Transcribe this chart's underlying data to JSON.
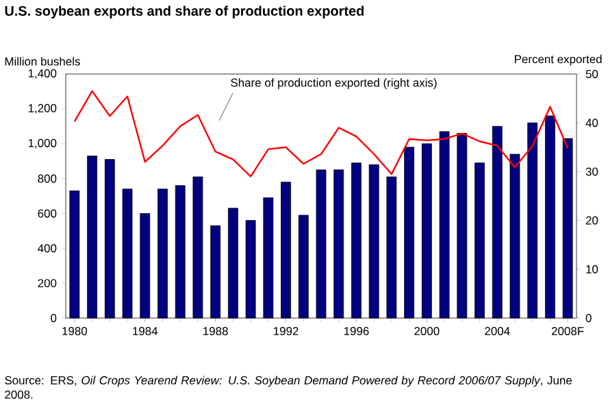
{
  "chart_data": {
    "type": "bar",
    "title": "U.S. soybean exports and share of production exported",
    "ylabel": "Million bushels",
    "y2label": "Percent exported",
    "categories": [
      "1980",
      null,
      null,
      null,
      "1984",
      null,
      null,
      null,
      "1988",
      null,
      null,
      null,
      "1992",
      null,
      null,
      null,
      "1996",
      null,
      null,
      null,
      "2000",
      null,
      null,
      null,
      "2004",
      null,
      null,
      null,
      "2008F"
    ],
    "series": [
      {
        "color": "#000080",
        "values": [
          730,
          930,
          910,
          740,
          600,
          740,
          760,
          810,
          530,
          630,
          560,
          690,
          780,
          590,
          850,
          850,
          890,
          880,
          810,
          980,
          1000,
          1070,
          1060,
          890,
          1100,
          940,
          1120,
          1160,
          1030
        ]
      },
      {
        "type": "line",
        "axis": "y2",
        "color": "#ff0000",
        "values": [
          40.3,
          46.5,
          41.4,
          45.4,
          32.0,
          35.3,
          39.3,
          41.6,
          34.1,
          32.5,
          29.0,
          34.6,
          35.0,
          31.6,
          33.6,
          39.0,
          37.2,
          33.6,
          29.5,
          36.7,
          36.4,
          36.7,
          37.8,
          36.2,
          35.3,
          30.9,
          35.3,
          43.3,
          34.8
        ]
      }
    ],
    "ylim": [
      0,
      1400
    ],
    "yticks": [
      0,
      200,
      400,
      600,
      800,
      {
        "value": 1000,
        "label": "1,000"
      },
      {
        "value": 1200,
        "label": "1,200"
      },
      {
        "value": 1400,
        "label": "1,400"
      }
    ],
    "y2lim": [
      0,
      50
    ],
    "y2ticks": [
      0,
      10,
      20,
      30,
      40,
      50
    ],
    "annotations": [
      "Share of production exported (right axis)",
      "Source: ERS, *Oil Crops Yearend Review: U.S. Soybean Demand Powered by Record 2006/07 Supply*, June 2008."
    ]
  }
}
